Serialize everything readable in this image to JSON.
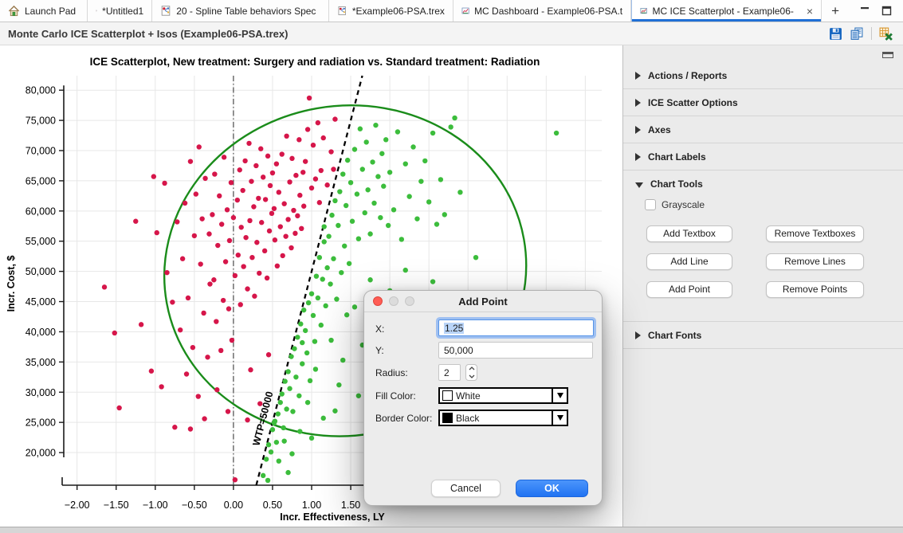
{
  "tabbar": {
    "tabs": [
      {
        "label": "Launch Pad",
        "icon": "home-icon"
      },
      {
        "label": "*Untitled1",
        "icon": "tree-doc-icon"
      },
      {
        "label": "20 - Spline Table behaviors Spec",
        "icon": "tree-doc-icon"
      },
      {
        "label": "*Example06-PSA.trex",
        "icon": "tree-doc-icon"
      },
      {
        "label": "MC Dashboard - Example06-PSA.t",
        "icon": "chart-doc-icon"
      },
      {
        "label": "MC ICE Scatterplot - Example06-",
        "icon": "chart-doc-icon",
        "close_glyph": "×"
      }
    ],
    "new_tab_glyph": "+"
  },
  "titlebar": {
    "title": "Monte Carlo ICE Scatterplot + Isos (Example06-PSA.trex)"
  },
  "chart_data": {
    "type": "scatter",
    "title": "ICE Scatterplot, New treatment: Surgery and radiation vs. Standard treatment: Radiation",
    "xlabel": "Incr. Effectiveness, LY",
    "ylabel": "Incr. Cost, $",
    "xlim": [
      -2.17,
      4.71
    ],
    "ylim": [
      14600,
      82400
    ],
    "grid": true,
    "x_grid": {
      "from": -2.0,
      "to": 4.5,
      "step": 0.5
    },
    "y_grid": {
      "from": 20000,
      "to": 80000,
      "step": 5000
    },
    "x_ticks": [
      {
        "v": -2.0,
        "label": "−2.00"
      },
      {
        "v": -1.5,
        "label": "−1.50"
      },
      {
        "v": -1.0,
        "label": "−1.00"
      },
      {
        "v": -0.5,
        "label": "−0.50"
      },
      {
        "v": 0.0,
        "label": "0.00"
      },
      {
        "v": 0.5,
        "label": "0.50"
      },
      {
        "v": 1.0,
        "label": "1.00"
      },
      {
        "v": 1.5,
        "label": "1.50"
      }
    ],
    "y_ticks": [
      {
        "v": 80000,
        "label": "80,000"
      },
      {
        "v": 75000,
        "label": "75,000"
      },
      {
        "v": 70000,
        "label": "70,000"
      },
      {
        "v": 65000,
        "label": "65,000"
      },
      {
        "v": 60000,
        "label": "60,000"
      },
      {
        "v": 55000,
        "label": "55,000"
      },
      {
        "v": 50000,
        "label": "50,000"
      },
      {
        "v": 45000,
        "label": "45,000"
      },
      {
        "v": 40000,
        "label": "40,000"
      },
      {
        "v": 35000,
        "label": "35,000"
      },
      {
        "v": 30000,
        "label": "30,000"
      },
      {
        "v": 25000,
        "label": "25,000"
      },
      {
        "v": 20000,
        "label": "20,000"
      }
    ],
    "reference_line_x": 0.0,
    "wtp_line": {
      "label": "WTP=50000",
      "slope": 50000,
      "intercept": 0,
      "color": "#000000",
      "style": "dashed"
    },
    "confidence_ellipse": {
      "cx": 1.43,
      "cy": 50100,
      "rx": 2.32,
      "ry": 27300,
      "rotation_deg": -10,
      "color": "#1a8c1a"
    },
    "series": [
      {
        "name": "above WTP threshold",
        "color_name": "red",
        "color": "#d6164a",
        "points": [
          [
            -1.65,
            47400
          ],
          [
            -1.46,
            27400
          ],
          [
            -1.52,
            39800
          ],
          [
            -1.18,
            41200
          ],
          [
            -1.25,
            58300
          ],
          [
            -1.05,
            33500
          ],
          [
            -1.02,
            65700
          ],
          [
            -0.98,
            56400
          ],
          [
            -0.92,
            30900
          ],
          [
            -0.88,
            64600
          ],
          [
            -0.85,
            49800
          ],
          [
            -0.78,
            44900
          ],
          [
            -0.75,
            24200
          ],
          [
            -0.72,
            58200
          ],
          [
            -0.68,
            40300
          ],
          [
            -0.65,
            52100
          ],
          [
            -0.62,
            61300
          ],
          [
            -0.6,
            33000
          ],
          [
            -0.58,
            45600
          ],
          [
            -0.55,
            68200
          ],
          [
            -0.55,
            23900
          ],
          [
            -0.52,
            37400
          ],
          [
            -0.5,
            55900
          ],
          [
            -0.48,
            62800
          ],
          [
            -0.45,
            29300
          ],
          [
            -0.44,
            70600
          ],
          [
            -0.42,
            51200
          ],
          [
            -0.4,
            58700
          ],
          [
            -0.38,
            43100
          ],
          [
            -0.37,
            25600
          ],
          [
            -0.36,
            65400
          ],
          [
            -0.33,
            35800
          ],
          [
            -0.31,
            56200
          ],
          [
            -0.3,
            47900
          ],
          [
            -0.27,
            59400
          ],
          [
            -0.25,
            48600
          ],
          [
            -0.24,
            66100
          ],
          [
            -0.22,
            41700
          ],
          [
            -0.21,
            30400
          ],
          [
            -0.2,
            54300
          ],
          [
            -0.18,
            62500
          ],
          [
            -0.16,
            36900
          ],
          [
            -0.15,
            57800
          ],
          [
            -0.13,
            45200
          ],
          [
            -0.12,
            68900
          ],
          [
            -0.1,
            51600
          ],
          [
            -0.08,
            60200
          ],
          [
            -0.07,
            26800
          ],
          [
            -0.06,
            43800
          ],
          [
            -0.05,
            55100
          ],
          [
            -0.03,
            64700
          ],
          [
            -0.02,
            38600
          ],
          [
            0.0,
            58900
          ],
          [
            0.02,
            49300
          ],
          [
            0.02,
            15500
          ],
          [
            0.05,
            61800
          ],
          [
            0.06,
            52700
          ],
          [
            0.08,
            66800
          ],
          [
            0.09,
            44500
          ],
          [
            0.1,
            57300
          ],
          [
            0.12,
            63400
          ],
          [
            0.13,
            50800
          ],
          [
            0.15,
            68300
          ],
          [
            0.16,
            55600
          ],
          [
            0.18,
            47100
          ],
          [
            0.18,
            25400
          ],
          [
            0.2,
            71200
          ],
          [
            0.21,
            58400
          ],
          [
            0.22,
            33700
          ],
          [
            0.23,
            64900
          ],
          [
            0.24,
            52300
          ],
          [
            0.26,
            60700
          ],
          [
            0.27,
            45900
          ],
          [
            0.29,
            67500
          ],
          [
            0.3,
            54800
          ],
          [
            0.32,
            62100
          ],
          [
            0.33,
            49700
          ],
          [
            0.34,
            28100
          ],
          [
            0.35,
            70300
          ],
          [
            0.36,
            58100
          ],
          [
            0.38,
            65600
          ],
          [
            0.4,
            53400
          ],
          [
            0.41,
            61900
          ],
          [
            0.43,
            48900
          ],
          [
            0.44,
            69100
          ],
          [
            0.45,
            36200
          ],
          [
            0.46,
            56700
          ],
          [
            0.47,
            64200
          ],
          [
            0.49,
            59600
          ],
          [
            0.5,
            66300
          ],
          [
            0.52,
            60400
          ],
          [
            0.53,
            55200
          ],
          [
            0.55,
            67800
          ],
          [
            0.56,
            50900
          ],
          [
            0.58,
            63100
          ],
          [
            0.6,
            57400
          ],
          [
            0.62,
            69400
          ],
          [
            0.63,
            52600
          ],
          [
            0.65,
            61200
          ],
          [
            0.67,
            55800
          ],
          [
            0.68,
            72400
          ],
          [
            0.7,
            58600
          ],
          [
            0.72,
            64800
          ],
          [
            0.74,
            53900
          ],
          [
            0.75,
            68700
          ],
          [
            0.77,
            60100
          ],
          [
            0.79,
            56300
          ],
          [
            0.8,
            65900
          ],
          [
            0.82,
            59200
          ],
          [
            0.84,
            71800
          ],
          [
            0.85,
            62600
          ],
          [
            0.87,
            57100
          ],
          [
            0.89,
            66400
          ],
          [
            0.9,
            60800
          ],
          [
            0.92,
            68200
          ],
          [
            0.95,
            73500
          ],
          [
            0.97,
            78700
          ],
          [
            1.0,
            63800
          ],
          [
            1.02,
            70900
          ],
          [
            1.05,
            65300
          ],
          [
            1.08,
            74600
          ],
          [
            1.1,
            61400
          ],
          [
            1.12,
            66700
          ],
          [
            1.15,
            72100
          ],
          [
            1.2,
            64300
          ],
          [
            1.25,
            69800
          ],
          [
            1.28,
            66900
          ],
          [
            1.3,
            75200
          ]
        ]
      },
      {
        "name": "below WTP threshold",
        "color_name": "green",
        "color": "#3cbd3c",
        "points": [
          [
            0.38,
            16200
          ],
          [
            0.42,
            18900
          ],
          [
            0.44,
            15400
          ],
          [
            0.45,
            21300
          ],
          [
            0.48,
            20100
          ],
          [
            0.5,
            23800
          ],
          [
            0.52,
            24900
          ],
          [
            0.53,
            25200
          ],
          [
            0.55,
            21700
          ],
          [
            0.57,
            26400
          ],
          [
            0.58,
            18600
          ],
          [
            0.6,
            28300
          ],
          [
            0.62,
            29700
          ],
          [
            0.64,
            24100
          ],
          [
            0.65,
            21900
          ],
          [
            0.66,
            31800
          ],
          [
            0.68,
            27200
          ],
          [
            0.7,
            33400
          ],
          [
            0.7,
            16700
          ],
          [
            0.72,
            30600
          ],
          [
            0.74,
            35900
          ],
          [
            0.75,
            19800
          ],
          [
            0.76,
            26800
          ],
          [
            0.78,
            37200
          ],
          [
            0.8,
            32500
          ],
          [
            0.82,
            39100
          ],
          [
            0.84,
            29400
          ],
          [
            0.85,
            23500
          ],
          [
            0.86,
            41300
          ],
          [
            0.88,
            34700
          ],
          [
            0.88,
            38200
          ],
          [
            0.9,
            43600
          ],
          [
            0.92,
            40200
          ],
          [
            0.94,
            36500
          ],
          [
            0.95,
            28300
          ],
          [
            0.96,
            44800
          ],
          [
            0.98,
            31900
          ],
          [
            1.0,
            46300
          ],
          [
            1.0,
            22400
          ],
          [
            1.02,
            42700
          ],
          [
            1.04,
            38400
          ],
          [
            1.05,
            33800
          ],
          [
            1.06,
            49200
          ],
          [
            1.08,
            45600
          ],
          [
            1.1,
            52300
          ],
          [
            1.12,
            41100
          ],
          [
            1.14,
            48700
          ],
          [
            1.15,
            25700
          ],
          [
            1.16,
            54900
          ],
          [
            1.16,
            57400
          ],
          [
            1.18,
            44300
          ],
          [
            1.2,
            50600
          ],
          [
            1.22,
            55800
          ],
          [
            1.24,
            47900
          ],
          [
            1.25,
            38600
          ],
          [
            1.26,
            59300
          ],
          [
            1.28,
            52100
          ],
          [
            1.3,
            61700
          ],
          [
            1.3,
            26900
          ],
          [
            1.32,
            45400
          ],
          [
            1.34,
            57600
          ],
          [
            1.35,
            31200
          ],
          [
            1.36,
            63200
          ],
          [
            1.38,
            49800
          ],
          [
            1.4,
            66100
          ],
          [
            1.4,
            35300
          ],
          [
            1.42,
            54200
          ],
          [
            1.44,
            60900
          ],
          [
            1.45,
            42800
          ],
          [
            1.46,
            68400
          ],
          [
            1.48,
            51300
          ],
          [
            1.5,
            64700
          ],
          [
            1.52,
            58300
          ],
          [
            1.55,
            70200
          ],
          [
            1.55,
            44100
          ],
          [
            1.58,
            62800
          ],
          [
            1.6,
            55400
          ],
          [
            1.6,
            29400
          ],
          [
            1.62,
            73600
          ],
          [
            1.65,
            66900
          ],
          [
            1.65,
            37800
          ],
          [
            1.68,
            59700
          ],
          [
            1.7,
            71400
          ],
          [
            1.72,
            63500
          ],
          [
            1.75,
            56200
          ],
          [
            1.75,
            48600
          ],
          [
            1.78,
            68100
          ],
          [
            1.8,
            61300
          ],
          [
            1.8,
            33600
          ],
          [
            1.82,
            74200
          ],
          [
            1.85,
            65700
          ],
          [
            1.85,
            41900
          ],
          [
            1.88,
            58900
          ],
          [
            1.9,
            69500
          ],
          [
            1.92,
            64100
          ],
          [
            1.95,
            71800
          ],
          [
            1.98,
            57600
          ],
          [
            2.0,
            66400
          ],
          [
            2.0,
            46800
          ],
          [
            2.05,
            60200
          ],
          [
            2.1,
            73100
          ],
          [
            2.1,
            39500
          ],
          [
            2.15,
            55300
          ],
          [
            2.15,
            34900
          ],
          [
            2.2,
            67800
          ],
          [
            2.2,
            50200
          ],
          [
            2.25,
            62400
          ],
          [
            2.3,
            70600
          ],
          [
            2.3,
            43700
          ],
          [
            2.35,
            58700
          ],
          [
            2.4,
            64900
          ],
          [
            2.45,
            68300
          ],
          [
            2.5,
            61500
          ],
          [
            2.55,
            72900
          ],
          [
            2.55,
            48300
          ],
          [
            2.6,
            57800
          ],
          [
            2.65,
            65200
          ],
          [
            2.7,
            59400
          ],
          [
            2.7,
            44600
          ],
          [
            2.78,
            73900
          ],
          [
            2.83,
            75400
          ],
          [
            2.9,
            63100
          ],
          [
            3.1,
            52300
          ],
          [
            4.13,
            72900
          ]
        ]
      }
    ]
  },
  "panel": {
    "sections": [
      {
        "label": "Actions / Reports",
        "expanded": false
      },
      {
        "label": "ICE Scatter Options",
        "expanded": false
      },
      {
        "label": "Axes",
        "expanded": false
      },
      {
        "label": "Chart Labels",
        "expanded": false
      },
      {
        "label": "Chart Tools",
        "expanded": true
      },
      {
        "label": "Chart Fonts",
        "expanded": false
      }
    ],
    "grayscale_label": "Grayscale",
    "buttons": {
      "add_textbox": "Add Textbox",
      "remove_textboxes": "Remove Textboxes",
      "add_line": "Add Line",
      "remove_lines": "Remove Lines",
      "add_point": "Add Point",
      "remove_points": "Remove Points"
    }
  },
  "dialog": {
    "title": "Add Point",
    "x_label": "X:",
    "x_value": "1.25",
    "y_label": "Y:",
    "y_value": "50,000",
    "radius_label": "Radius:",
    "radius_value": "2",
    "fill_label": "Fill Color:",
    "fill_value": "White",
    "border_label": "Border Color:",
    "border_value": "Black",
    "cancel_label": "Cancel",
    "ok_label": "OK",
    "fill_swatch_color": "#ffffff",
    "border_swatch_color": "#000000"
  }
}
